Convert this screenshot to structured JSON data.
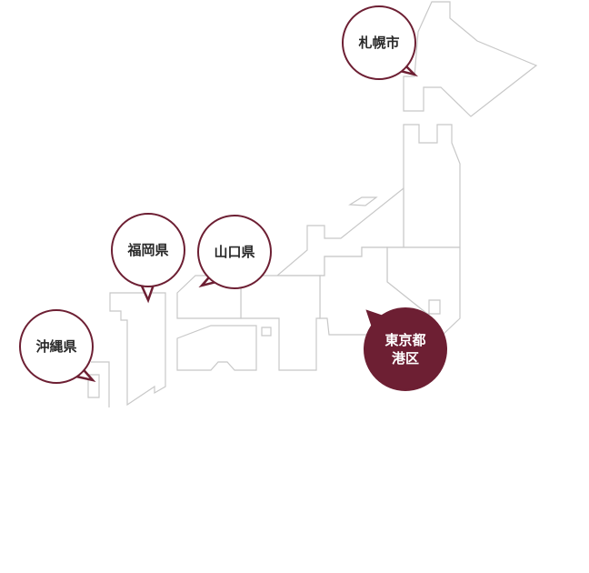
{
  "theme": {
    "accent": "#6d1f33",
    "map_stroke": "#c8c8c8",
    "background": "#ffffff"
  },
  "locations": {
    "sapporo": {
      "label": "札幌市"
    },
    "fukuoka": {
      "label": "福岡県"
    },
    "yamaguchi": {
      "label": "山口県"
    },
    "okinawa": {
      "label": "沖縄県"
    },
    "tokyo": {
      "label_line1": "東京都",
      "label_line2": "港区"
    }
  }
}
